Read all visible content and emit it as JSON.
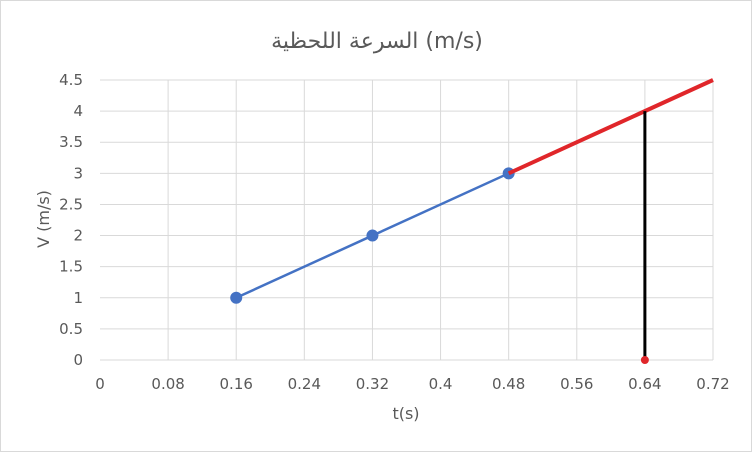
{
  "chart_data": {
    "type": "line",
    "title": "السرعة اللحظية (m/s)",
    "xlabel": "t(s)",
    "ylabel": "V (m/s)",
    "xlim": [
      0,
      0.72
    ],
    "ylim": [
      0,
      4.5
    ],
    "x_ticks": [
      "0",
      "0.08",
      "0.16",
      "0.24",
      "0.32",
      "0.4",
      "0.48",
      "0.56",
      "0.64",
      "0.72"
    ],
    "y_ticks": [
      "0",
      "0.5",
      "1",
      "1.5",
      "2",
      "2.5",
      "3",
      "3.5",
      "4",
      "4.5"
    ],
    "grid": true,
    "series": [
      {
        "x": [
          0.16,
          0.32,
          0.48
        ],
        "y": [
          1,
          2,
          3
        ],
        "color": "#4472C4",
        "markers": true
      },
      {
        "x": [
          0.48,
          0.72
        ],
        "y": [
          3,
          4.5
        ],
        "color": "#E0262A",
        "markers": false
      },
      {
        "x": [
          0.64,
          0.64
        ],
        "y": [
          0,
          4
        ],
        "color": "#000000",
        "markers": false
      },
      {
        "x": [
          0.64
        ],
        "y": [
          0
        ],
        "color": "#E0262A",
        "markers": true
      }
    ]
  }
}
